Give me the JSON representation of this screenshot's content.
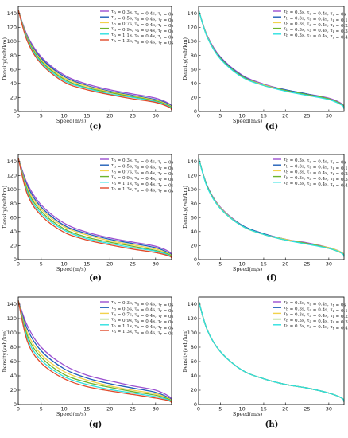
{
  "colors": {
    "purple": "#9b4fd0",
    "blue": "#1f5fb8",
    "yellow": "#f2d24b",
    "green": "#6db32b",
    "cyan": "#2ee0e0",
    "red": "#e04a2a"
  },
  "chart_data": [
    {
      "panel": "(c)",
      "type": "line",
      "xlabel": "Speed(m/s)",
      "ylabel": "Density(veh/km)",
      "xlim": [
        0,
        33.5
      ],
      "ylim": [
        0,
        150
      ],
      "xticks": [
        0,
        5,
        10,
        15,
        20,
        25,
        30
      ],
      "yticks": [
        0,
        20,
        40,
        60,
        80,
        100,
        120,
        140
      ],
      "legend": "top-right",
      "series": [
        {
          "name": "τ_h = 0.3s, τ_a = 0.4s, τ_r = 0s",
          "color": "purple",
          "x": [
            0,
            2,
            5,
            10,
            15,
            20,
            25,
            30,
            33,
            33.5
          ],
          "y": [
            145,
            108,
            78,
            52,
            39,
            31,
            25,
            19,
            11,
            5
          ]
        },
        {
          "name": "τ_h = 0.5s, τ_a = 0.4s, τ_r = 0s",
          "color": "blue",
          "x": [
            0,
            2,
            5,
            10,
            15,
            20,
            25,
            30,
            33,
            33.5
          ],
          "y": [
            145,
            106,
            76,
            50,
            37,
            29,
            23,
            17,
            10,
            4
          ]
        },
        {
          "name": "τ_h = 0.7s, τ_a = 0.4s, τ_r = 0s",
          "color": "yellow",
          "x": [
            0,
            2,
            5,
            10,
            15,
            20,
            25,
            30,
            33,
            33.5
          ],
          "y": [
            145,
            105,
            74,
            48,
            36,
            28,
            22,
            16,
            9,
            4
          ]
        },
        {
          "name": "τ_h = 0.9s, τ_a = 0.4s, τ_r = 0s",
          "color": "green",
          "x": [
            0,
            2,
            5,
            10,
            15,
            20,
            25,
            30,
            33,
            33.5
          ],
          "y": [
            145,
            104,
            72,
            46,
            34,
            27,
            21,
            15,
            8,
            3
          ]
        },
        {
          "name": "τ_h = 1.1s, τ_a = 0.4s, τ_r = 0s",
          "color": "cyan",
          "x": [
            0,
            2,
            5,
            10,
            15,
            20,
            25,
            30,
            33,
            33.5
          ],
          "y": [
            145,
            102,
            70,
            44,
            33,
            25,
            20,
            14,
            7,
            3
          ]
        },
        {
          "name": "τ_h = 1.3s, τ_a = 0.4s, τ_r = 0s",
          "color": "red",
          "x": [
            0,
            2,
            5,
            10,
            15,
            20,
            25,
            30,
            33,
            33.5
          ],
          "y": [
            145,
            100,
            68,
            42,
            31,
            24,
            18,
            13,
            6,
            2
          ]
        }
      ]
    },
    {
      "panel": "(d)",
      "type": "line",
      "xlabel": "Speed(m/s)",
      "ylabel": "Density(veh/km)",
      "xlim": [
        0,
        33.5
      ],
      "ylim": [
        0,
        150
      ],
      "xticks": [
        0,
        5,
        10,
        15,
        20,
        25,
        30
      ],
      "yticks": [
        0,
        20,
        40,
        60,
        80,
        100,
        120,
        140
      ],
      "legend": "top-right",
      "series": [
        {
          "name": "τ_h = 0.3s, τ_a = 0.4s, τ_r = 0s",
          "color": "purple",
          "x": [
            0,
            2,
            5,
            10,
            15,
            20,
            25,
            30,
            33,
            33.5
          ],
          "y": [
            145,
            108,
            78,
            52,
            39,
            31,
            25,
            19,
            11,
            5
          ]
        },
        {
          "name": "τ_h = 0.3s, τ_a = 0.4s, τ_r = 0.1s",
          "color": "blue",
          "x": [
            0,
            2,
            5,
            10,
            15,
            20,
            25,
            30,
            33,
            33.5
          ],
          "y": [
            145,
            107,
            77,
            51,
            38,
            31,
            25,
            18,
            10,
            5
          ]
        },
        {
          "name": "τ_h = 0.3s, τ_a = 0.4s, τ_r = 0.2s",
          "color": "yellow",
          "x": [
            0,
            2,
            5,
            10,
            15,
            20,
            25,
            30,
            33,
            33.5
          ],
          "y": [
            145,
            107,
            76,
            50,
            38,
            30,
            24,
            18,
            10,
            5
          ]
        },
        {
          "name": "τ_h = 0.3s, τ_a = 0.4s, τ_r = 0.3s",
          "color": "green",
          "x": [
            0,
            2,
            5,
            10,
            15,
            20,
            25,
            30,
            33,
            33.5
          ],
          "y": [
            145,
            106,
            76,
            50,
            37,
            30,
            24,
            18,
            10,
            4
          ]
        },
        {
          "name": "τ_h = 0.3s, τ_a = 0.4s, τ_r = 0.4s",
          "color": "cyan",
          "x": [
            0,
            2,
            5,
            10,
            15,
            20,
            25,
            30,
            33,
            33.5
          ],
          "y": [
            145,
            106,
            75,
            49,
            37,
            29,
            23,
            17,
            9,
            4
          ]
        }
      ]
    },
    {
      "panel": "(e)",
      "type": "line",
      "xlabel": "Speed(m/s)",
      "ylabel": "Density(veh/km)",
      "xlim": [
        0,
        33.5
      ],
      "ylim": [
        0,
        150
      ],
      "xticks": [
        0,
        5,
        10,
        15,
        20,
        25,
        30
      ],
      "yticks": [
        0,
        20,
        40,
        60,
        80,
        100,
        120,
        140
      ],
      "legend": "top-right",
      "series": [
        {
          "name": "τ_h = 0.3s, τ_a = 0.4s, τ_r = 0s",
          "color": "purple",
          "x": [
            0,
            2,
            5,
            10,
            15,
            20,
            25,
            30,
            33,
            33.5
          ],
          "y": [
            145,
            108,
            78,
            52,
            39,
            31,
            25,
            19,
            11,
            5
          ]
        },
        {
          "name": "τ_h = 0.5s, τ_a = 0.4s, τ_r = 0s",
          "color": "blue",
          "x": [
            0,
            2,
            5,
            10,
            15,
            20,
            25,
            30,
            33,
            33.5
          ],
          "y": [
            145,
            105,
            75,
            49,
            37,
            29,
            23,
            17,
            9,
            4
          ]
        },
        {
          "name": "τ_h = 0.7s, τ_a = 0.4s, τ_r = 0s",
          "color": "yellow",
          "x": [
            0,
            2,
            5,
            10,
            15,
            20,
            25,
            30,
            33,
            33.5
          ],
          "y": [
            145,
            102,
            72,
            47,
            35,
            27,
            21,
            15,
            8,
            4
          ]
        },
        {
          "name": "τ_h = 0.9s, τ_a = 0.4s, τ_r = 0s",
          "color": "green",
          "x": [
            0,
            2,
            5,
            10,
            15,
            20,
            25,
            30,
            33,
            33.5
          ],
          "y": [
            145,
            99,
            69,
            44,
            32,
            25,
            19,
            13,
            7,
            3
          ]
        },
        {
          "name": "τ_h = 1.1s, τ_a = 0.4s, τ_r = 0s",
          "color": "cyan",
          "x": [
            0,
            2,
            5,
            10,
            15,
            20,
            25,
            30,
            33,
            33.5
          ],
          "y": [
            145,
            96,
            66,
            42,
            30,
            23,
            17,
            12,
            6,
            2
          ]
        },
        {
          "name": "τ_h = 1.3s, τ_a = 0.4s, τ_r = 0s",
          "color": "red",
          "x": [
            0,
            2,
            5,
            10,
            15,
            20,
            25,
            30,
            33,
            33.5
          ],
          "y": [
            145,
            93,
            63,
            39,
            28,
            21,
            15,
            10,
            5,
            2
          ]
        }
      ]
    },
    {
      "panel": "(f)",
      "type": "line",
      "xlabel": "Speed(m/s)",
      "ylabel": "Density(veh/km)",
      "xlim": [
        0,
        33.5
      ],
      "ylim": [
        0,
        150
      ],
      "xticks": [
        0,
        5,
        10,
        15,
        20,
        25,
        30
      ],
      "yticks": [
        0,
        20,
        40,
        60,
        80,
        100,
        120,
        140
      ],
      "legend": "top-right",
      "series": [
        {
          "name": "τ_h = 0.3s, τ_a = 0.4s, τ_r = 0s",
          "color": "purple",
          "x": [
            0,
            2,
            5,
            10,
            15,
            20,
            25,
            30,
            33,
            33.5
          ],
          "y": [
            145,
            105,
            75,
            49,
            37,
            29,
            24,
            17,
            10,
            5
          ]
        },
        {
          "name": "τ_h = 0.3s, τ_a = 0.4s, τ_r = 0.1s",
          "color": "blue",
          "x": [
            0,
            2,
            5,
            10,
            15,
            20,
            25,
            30,
            33,
            33.5
          ],
          "y": [
            145,
            105,
            74,
            49,
            37,
            29,
            23,
            17,
            10,
            5
          ]
        },
        {
          "name": "τ_h = 0.3s, τ_a = 0.4s, τ_r = 0.2s",
          "color": "yellow",
          "x": [
            0,
            2,
            5,
            10,
            15,
            20,
            25,
            30,
            33,
            33.5
          ],
          "y": [
            145,
            104,
            74,
            48,
            36,
            29,
            23,
            17,
            10,
            5
          ]
        },
        {
          "name": "τ_h = 0.3s, τ_a = 0.4s, τ_r = 0.3s",
          "color": "green",
          "x": [
            0,
            2,
            5,
            10,
            15,
            20,
            25,
            30,
            33,
            33.5
          ],
          "y": [
            145,
            104,
            73,
            48,
            36,
            28,
            23,
            16,
            9,
            5
          ]
        },
        {
          "name": "τ_h = 0.3s, τ_a = 0.4s, τ_r = 0.4s",
          "color": "cyan",
          "x": [
            0,
            2,
            5,
            10,
            15,
            20,
            25,
            30,
            33,
            33.5
          ],
          "y": [
            145,
            103,
            73,
            48,
            36,
            28,
            22,
            16,
            9,
            4
          ]
        }
      ]
    },
    {
      "panel": "(g)",
      "type": "line",
      "xlabel": "Speed(m/s)",
      "ylabel": "Density(veh/km)",
      "xlim": [
        0,
        33.5
      ],
      "ylim": [
        0,
        150
      ],
      "xticks": [
        0,
        5,
        10,
        15,
        20,
        25,
        30
      ],
      "yticks": [
        0,
        20,
        40,
        60,
        80,
        100,
        120,
        140
      ],
      "legend": "top-right",
      "series": [
        {
          "name": "τ_h = 0.3s, τ_a = 0.4s, τ_r = 0s",
          "color": "purple",
          "x": [
            0,
            2,
            5,
            10,
            15,
            20,
            25,
            30,
            33,
            33.5
          ],
          "y": [
            145,
            110,
            80,
            55,
            41,
            33,
            26,
            20,
            11,
            5
          ]
        },
        {
          "name": "τ_h = 0.5s, τ_a = 0.4s, τ_r = 0s",
          "color": "blue",
          "x": [
            0,
            2,
            5,
            10,
            15,
            20,
            25,
            30,
            33,
            33.5
          ],
          "y": [
            145,
            105,
            75,
            50,
            37,
            29,
            23,
            17,
            9,
            4
          ]
        },
        {
          "name": "τ_h = 0.7s, τ_a = 0.4s, τ_r = 0s",
          "color": "yellow",
          "x": [
            0,
            2,
            5,
            10,
            15,
            20,
            25,
            30,
            33,
            33.5
          ],
          "y": [
            145,
            100,
            70,
            46,
            34,
            26,
            20,
            15,
            8,
            4
          ]
        },
        {
          "name": "τ_h = 0.9s, τ_a = 0.4s, τ_r = 0s",
          "color": "green",
          "x": [
            0,
            2,
            5,
            10,
            15,
            20,
            25,
            30,
            33,
            33.5
          ],
          "y": [
            145,
            96,
            66,
            42,
            31,
            24,
            18,
            13,
            7,
            3
          ]
        },
        {
          "name": "τ_h = 1.1s, τ_a = 0.4s, τ_r = 0s",
          "color": "cyan",
          "x": [
            0,
            2,
            5,
            10,
            15,
            20,
            25,
            30,
            33,
            33.5
          ],
          "y": [
            145,
            92,
            62,
            39,
            28,
            21,
            16,
            11,
            6,
            2
          ]
        },
        {
          "name": "τ_h = 1.3s, τ_a = 0.4s, τ_r = 0s",
          "color": "red",
          "x": [
            0,
            2,
            5,
            10,
            15,
            20,
            25,
            30,
            33,
            33.5
          ],
          "y": [
            145,
            88,
            58,
            36,
            25,
            19,
            14,
            9,
            5,
            2
          ]
        }
      ]
    },
    {
      "panel": "(h)",
      "type": "line",
      "xlabel": "Speed(m/s)",
      "ylabel": "Density(veh/km)",
      "xlim": [
        0,
        33.5
      ],
      "ylim": [
        0,
        150
      ],
      "xticks": [
        0,
        5,
        10,
        15,
        20,
        25,
        30
      ],
      "yticks": [
        0,
        20,
        40,
        60,
        80,
        100,
        120,
        140
      ],
      "legend": "top-right",
      "series": [
        {
          "name": "τ_h = 0.3s, τ_a = 0.4s, τ_r = 0s",
          "color": "purple",
          "x": [
            0,
            2,
            5,
            10,
            15,
            20,
            25,
            30,
            33,
            33.5
          ],
          "y": [
            145,
            104,
            74,
            48,
            36,
            28,
            23,
            16,
            9,
            4
          ]
        },
        {
          "name": "τ_h = 0.3s, τ_a = 0.4s, τ_r = 0.1s",
          "color": "blue",
          "x": [
            0,
            2,
            5,
            10,
            15,
            20,
            25,
            30,
            33,
            33.5
          ],
          "y": [
            145,
            104,
            74,
            48,
            36,
            28,
            23,
            16,
            9,
            4
          ]
        },
        {
          "name": "τ_h = 0.3s, τ_a = 0.4s, τ_r = 0.2s",
          "color": "yellow",
          "x": [
            0,
            2,
            5,
            10,
            15,
            20,
            25,
            30,
            33,
            33.5
          ],
          "y": [
            145,
            104,
            74,
            48,
            36,
            28,
            23,
            16,
            9,
            4
          ]
        },
        {
          "name": "τ_h = 0.3s, τ_a = 0.4s, τ_r = 0.3s",
          "color": "green",
          "x": [
            0,
            2,
            5,
            10,
            15,
            20,
            25,
            30,
            33,
            33.5
          ],
          "y": [
            145,
            104,
            74,
            48,
            36,
            28,
            23,
            16,
            9,
            4
          ]
        },
        {
          "name": "τ_h = 0.3s, τ_a = 0.4s, τ_r = 0.4s",
          "color": "cyan",
          "x": [
            0,
            2,
            5,
            10,
            15,
            20,
            25,
            30,
            33,
            33.5
          ],
          "y": [
            145,
            104,
            74,
            48,
            36,
            28,
            23,
            16,
            9,
            4
          ]
        }
      ]
    }
  ]
}
